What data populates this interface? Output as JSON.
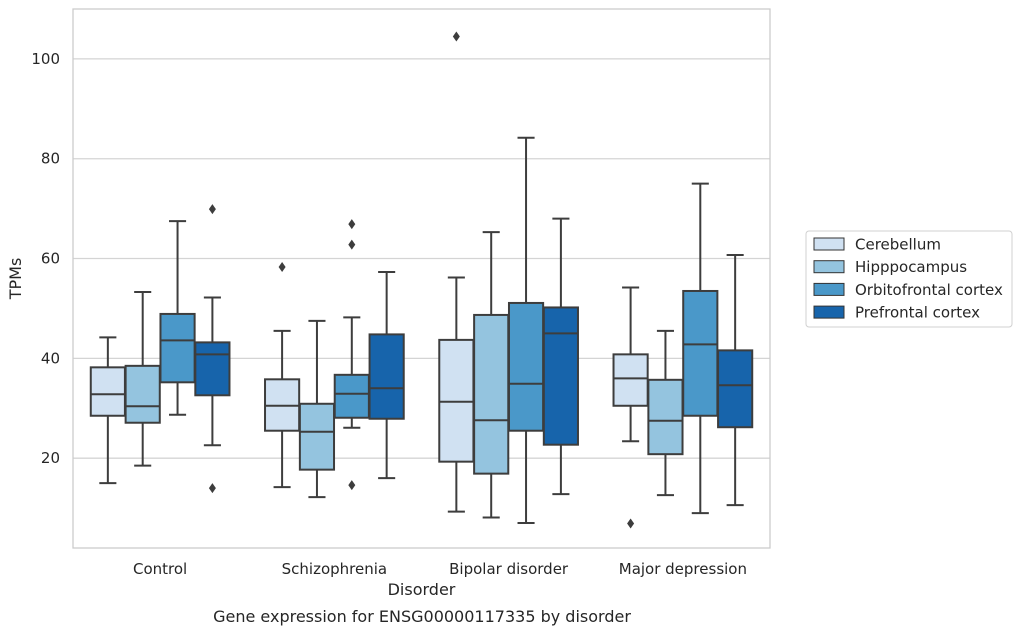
{
  "chart_data": {
    "type": "box",
    "xlabel": "Disorder",
    "ylabel": "TPMs",
    "caption": "Gene expression for ENSG00000117335 by disorder",
    "ylim": [
      2,
      110
    ],
    "yticks": [
      20,
      40,
      60,
      80,
      100
    ],
    "grid": "horizontal",
    "legend_position": "right",
    "categories": [
      "Control",
      "Schizophrenia",
      "Bipolar disorder",
      "Major depression"
    ],
    "series": [
      {
        "name": "Cerebellum",
        "color": "#d0e1f2",
        "boxes": [
          {
            "whisker_low": 15,
            "q1": 28.5,
            "median": 32.8,
            "q3": 38.2,
            "whisker_high": 44.2,
            "outliers": []
          },
          {
            "whisker_low": 14.2,
            "q1": 25.5,
            "median": 30.5,
            "q3": 35.8,
            "whisker_high": 45.5,
            "outliers": [
              58.3
            ]
          },
          {
            "whisker_low": 9.3,
            "q1": 19.3,
            "median": 31.3,
            "q3": 43.7,
            "whisker_high": 56.2,
            "outliers": [
              104.5
            ]
          },
          {
            "whisker_low": 23.4,
            "q1": 30.5,
            "median": 36,
            "q3": 40.8,
            "whisker_high": 54.2,
            "outliers": [
              6.9
            ]
          }
        ]
      },
      {
        "name": "Hipppocampus",
        "color": "#94c4df",
        "boxes": [
          {
            "whisker_low": 18.5,
            "q1": 27.1,
            "median": 30.4,
            "q3": 38.5,
            "whisker_high": 53.3,
            "outliers": []
          },
          {
            "whisker_low": 12.2,
            "q1": 17.7,
            "median": 25.3,
            "q3": 30.9,
            "whisker_high": 47.5,
            "outliers": []
          },
          {
            "whisker_low": 8.1,
            "q1": 16.9,
            "median": 27.6,
            "q3": 48.7,
            "whisker_high": 65.3,
            "outliers": []
          },
          {
            "whisker_low": 12.6,
            "q1": 20.8,
            "median": 27.5,
            "q3": 35.7,
            "whisker_high": 45.5,
            "outliers": []
          }
        ]
      },
      {
        "name": "Orbitofrontal cortex",
        "color": "#4a98c9",
        "boxes": [
          {
            "whisker_low": 28.7,
            "q1": 35.2,
            "median": 43.6,
            "q3": 48.9,
            "whisker_high": 67.5,
            "outliers": []
          },
          {
            "whisker_low": 26.1,
            "q1": 28.1,
            "median": 32.9,
            "q3": 36.7,
            "whisker_high": 48.2,
            "outliers": [
              14.6,
              62.8,
              66.9
            ]
          },
          {
            "whisker_low": 7,
            "q1": 25.5,
            "median": 34.9,
            "q3": 51.1,
            "whisker_high": 84.2,
            "outliers": []
          },
          {
            "whisker_low": 9,
            "q1": 28.5,
            "median": 42.8,
            "q3": 53.5,
            "whisker_high": 75,
            "outliers": []
          }
        ]
      },
      {
        "name": "Prefrontal cortex",
        "color": "#1764ab",
        "boxes": [
          {
            "whisker_low": 22.6,
            "q1": 32.6,
            "median": 40.8,
            "q3": 43.2,
            "whisker_high": 52.2,
            "outliers": [
              14,
              69.9
            ]
          },
          {
            "whisker_low": 16,
            "q1": 27.9,
            "median": 34,
            "q3": 44.8,
            "whisker_high": 57.3,
            "outliers": []
          },
          {
            "whisker_low": 12.8,
            "q1": 22.7,
            "median": 45,
            "q3": 50.2,
            "whisker_high": 68,
            "outliers": []
          },
          {
            "whisker_low": 10.6,
            "q1": 26.2,
            "median": 34.6,
            "q3": 41.6,
            "whisker_high": 60.7,
            "outliers": []
          }
        ]
      }
    ]
  }
}
